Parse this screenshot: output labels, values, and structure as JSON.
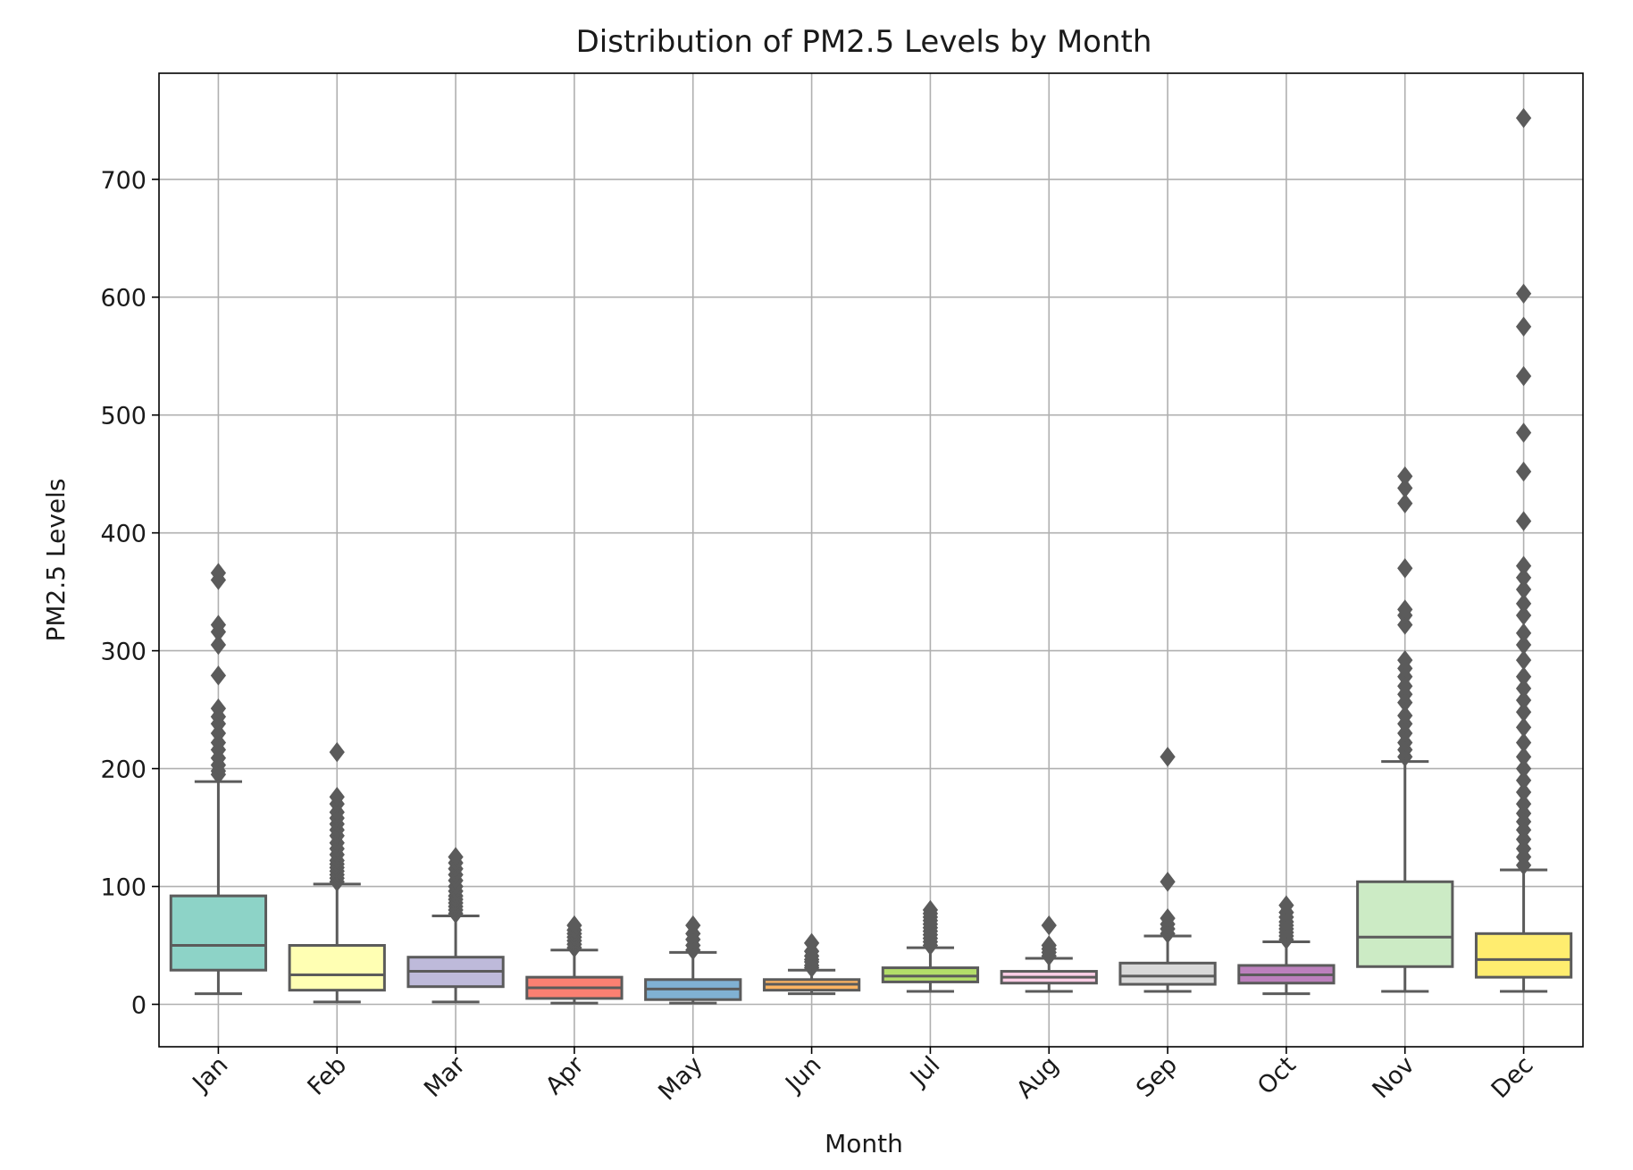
{
  "chart_data": {
    "type": "box",
    "title": "Distribution of PM2.5 Levels by Month",
    "xlabel": "Month",
    "ylabel": "PM2.5 Levels",
    "ylim": [
      -36,
      790
    ],
    "yticks": [
      0,
      100,
      200,
      300,
      400,
      500,
      600,
      700
    ],
    "grid": true,
    "categories": [
      "Jan",
      "Feb",
      "Mar",
      "Apr",
      "May",
      "Jun",
      "Jul",
      "Aug",
      "Sep",
      "Oct",
      "Nov",
      "Dec"
    ],
    "boxes": [
      {
        "label": "Jan",
        "color": "#8dd3c7",
        "whislo": 9,
        "q1": 29,
        "med": 50,
        "q3": 92,
        "whishi": 189,
        "fliers": [
          195,
          198,
          203,
          209,
          216,
          222,
          230,
          238,
          244,
          251,
          279,
          305,
          316,
          322,
          360,
          366
        ]
      },
      {
        "label": "Feb",
        "color": "#ffffb3",
        "whislo": 2,
        "q1": 12,
        "med": 25,
        "q3": 50,
        "whishi": 102,
        "fliers": [
          104,
          107,
          110,
          113,
          116,
          119,
          122,
          127,
          132,
          137,
          143,
          148,
          153,
          158,
          163,
          170,
          176,
          214
        ]
      },
      {
        "label": "Mar",
        "color": "#bebada",
        "whislo": 2,
        "q1": 15,
        "med": 28,
        "q3": 40,
        "whishi": 75,
        "fliers": [
          77,
          80,
          83,
          86,
          89,
          92,
          96,
          100,
          105,
          110,
          115,
          120,
          125
        ]
      },
      {
        "label": "Apr",
        "color": "#fb8072",
        "whislo": 1,
        "q1": 5,
        "med": 14,
        "q3": 23,
        "whishi": 46,
        "fliers": [
          48,
          51,
          54,
          57,
          60,
          63,
          67
        ]
      },
      {
        "label": "May",
        "color": "#80b1d3",
        "whislo": 1,
        "q1": 4,
        "med": 13,
        "q3": 21,
        "whishi": 44,
        "fliers": [
          46,
          50,
          55,
          60,
          67
        ]
      },
      {
        "label": "Jun",
        "color": "#fdb462",
        "whislo": 9,
        "q1": 12,
        "med": 17,
        "q3": 21,
        "whishi": 29,
        "fliers": [
          31,
          33,
          36,
          38,
          41,
          45,
          52
        ]
      },
      {
        "label": "Jul",
        "color": "#b3de69",
        "whislo": 11,
        "q1": 19,
        "med": 24,
        "q3": 31,
        "whishi": 48,
        "fliers": [
          50,
          53,
          56,
          59,
          62,
          65,
          68,
          71,
          74,
          77,
          80
        ]
      },
      {
        "label": "Aug",
        "color": "#fccde5",
        "whislo": 11,
        "q1": 18,
        "med": 23,
        "q3": 28,
        "whishi": 39,
        "fliers": [
          41,
          44,
          47,
          50,
          67
        ]
      },
      {
        "label": "Sep",
        "color": "#d9d9d9",
        "whislo": 11,
        "q1": 17,
        "med": 24,
        "q3": 35,
        "whishi": 58,
        "fliers": [
          60,
          64,
          68,
          73,
          104,
          210
        ]
      },
      {
        "label": "Oct",
        "color": "#bc80bd",
        "whislo": 9,
        "q1": 18,
        "med": 25,
        "q3": 33,
        "whishi": 53,
        "fliers": [
          55,
          58,
          61,
          64,
          67,
          70,
          74,
          78,
          84
        ]
      },
      {
        "label": "Nov",
        "color": "#ccebc5",
        "whislo": 11,
        "q1": 32,
        "med": 57,
        "q3": 104,
        "whishi": 206,
        "fliers": [
          210,
          216,
          222,
          230,
          238,
          245,
          256,
          263,
          270,
          278,
          285,
          292,
          322,
          330,
          335,
          370,
          425,
          438,
          448
        ]
      },
      {
        "label": "Dec",
        "color": "#ffed6f",
        "whislo": 11,
        "q1": 23,
        "med": 38,
        "q3": 60,
        "whishi": 114,
        "fliers": [
          118,
          125,
          132,
          140,
          148,
          155,
          162,
          170,
          180,
          190,
          200,
          210,
          222,
          235,
          248,
          258,
          268,
          278,
          292,
          305,
          315,
          330,
          340,
          352,
          362,
          372,
          410,
          452,
          485,
          533,
          575,
          603,
          752
        ]
      }
    ]
  }
}
